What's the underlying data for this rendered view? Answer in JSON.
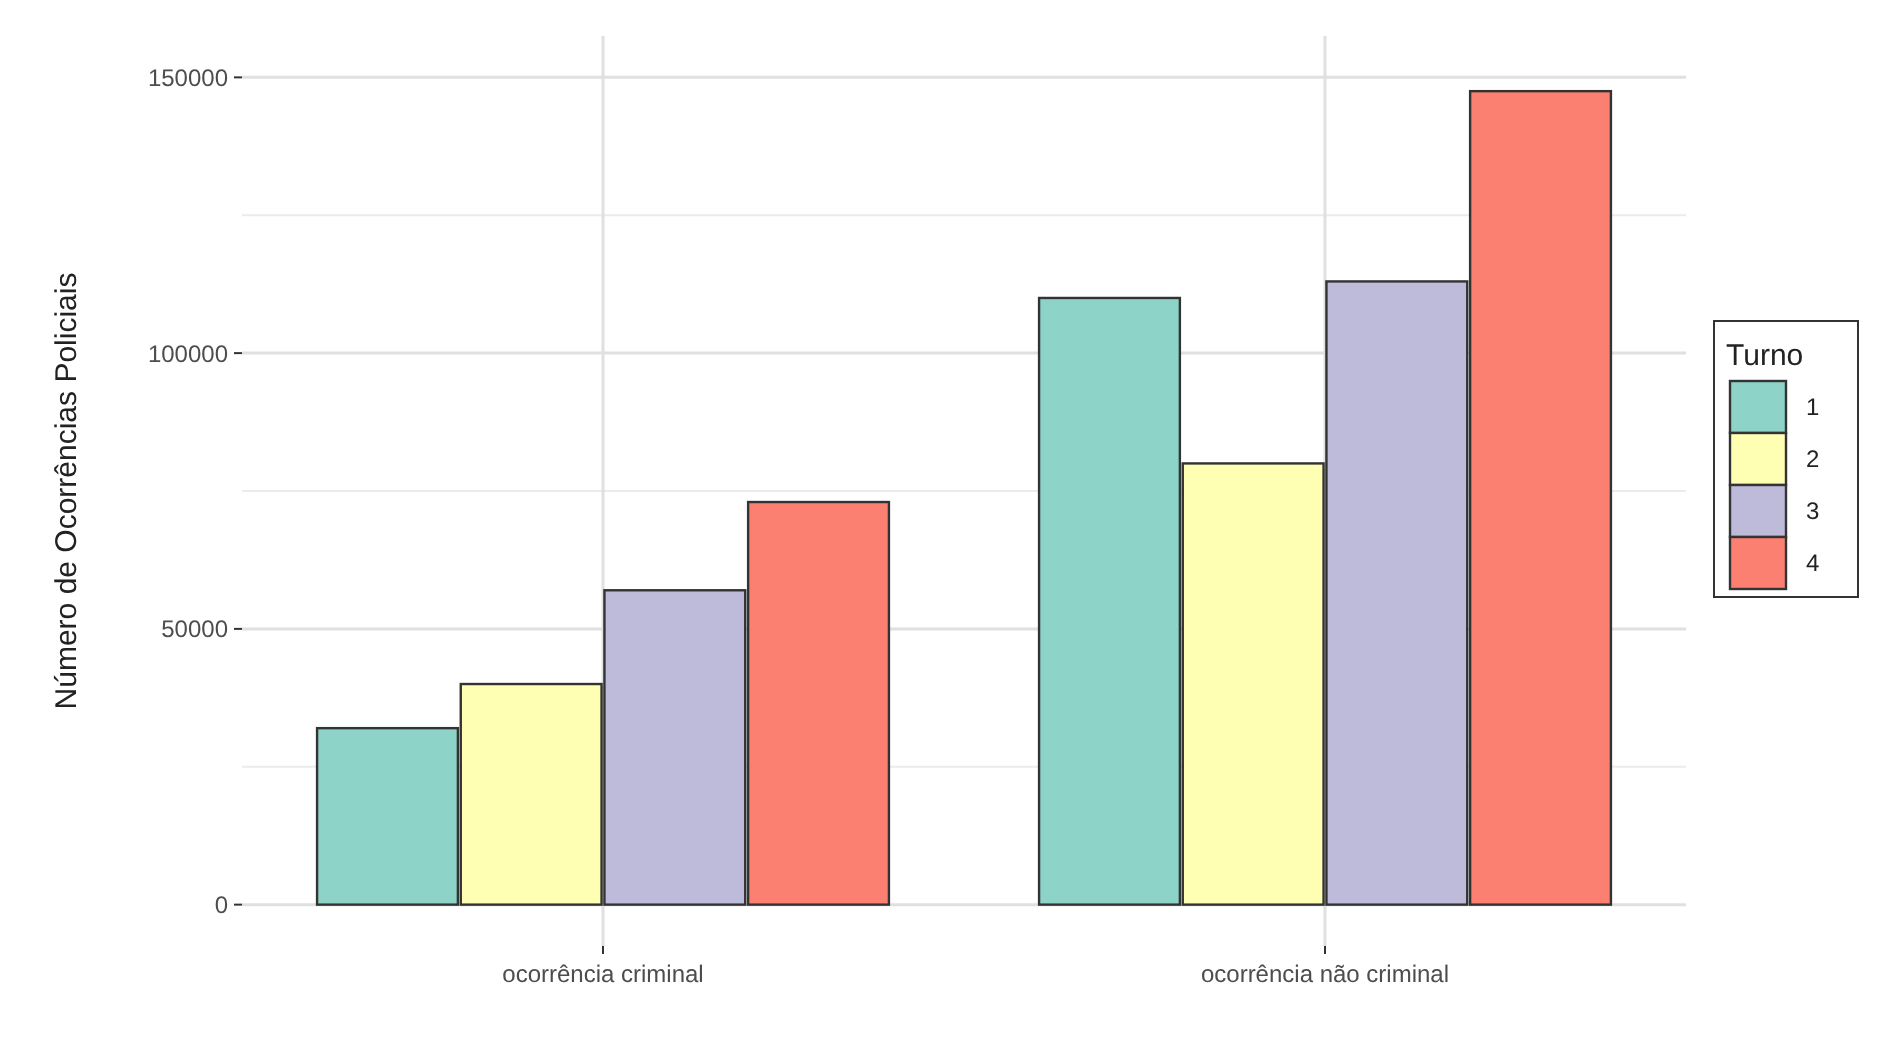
{
  "chart_data": {
    "type": "bar",
    "ylabel": "Número de Ocorrências Policiais",
    "legend_title": "Turno",
    "categories": [
      "ocorrência criminal",
      "ocorrência não criminal"
    ],
    "series": [
      {
        "name": "1",
        "color": "#8dd3c7",
        "values": [
          32000,
          110000
        ]
      },
      {
        "name": "2",
        "color": "#ffffb3",
        "values": [
          40000,
          80000
        ]
      },
      {
        "name": "3",
        "color": "#bebada",
        "values": [
          57000,
          113000
        ]
      },
      {
        "name": "4",
        "color": "#fb8072",
        "values": [
          73000,
          147500
        ]
      }
    ],
    "ylim": [
      -7500,
      157500
    ],
    "yticks": [
      0,
      50000,
      100000,
      150000
    ],
    "grid": true,
    "legend": "right"
  }
}
